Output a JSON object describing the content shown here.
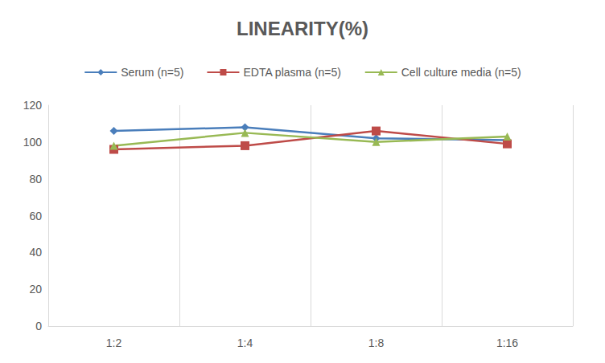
{
  "chart_data": {
    "type": "line",
    "title": "LINEARITY(%)",
    "categories": [
      "1:2",
      "1:4",
      "1:8",
      "1:16"
    ],
    "series": [
      {
        "name": "Serum (n=5)",
        "color": "#4a7ebb",
        "marker": "diamond",
        "values": [
          106,
          108,
          102,
          101
        ]
      },
      {
        "name": "EDTA plasma (n=5)",
        "color": "#be4b48",
        "marker": "square",
        "values": [
          96,
          98,
          106,
          99
        ]
      },
      {
        "name": "Cell culture media (n=5)",
        "color": "#98b954",
        "marker": "triangle",
        "values": [
          98,
          105,
          100,
          103
        ]
      }
    ],
    "ylim": [
      0,
      120
    ],
    "yticks": [
      0,
      20,
      40,
      60,
      80,
      100,
      120
    ],
    "grid": true,
    "legend": "top"
  }
}
